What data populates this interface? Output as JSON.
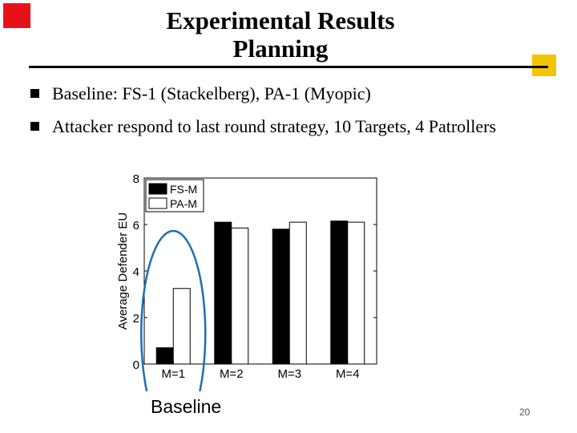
{
  "slide": {
    "title_line1": "Experimental Results",
    "title_line2": "Planning",
    "bullets": [
      "Baseline: FS-1 (Stackelberg), PA-1 (Myopic)",
      "Attacker respond to last round strategy, 10 Targets, 4 Patrollers"
    ],
    "annotation": "Baseline",
    "page_number": "20",
    "colors": {
      "red_accent": "#e8111a",
      "yellow_accent": "#f5c400",
      "circle": "#1d6fb5"
    }
  },
  "chart_data": {
    "type": "bar",
    "ylabel": "Average Defender EU",
    "xlabel": "",
    "categories": [
      "M=1",
      "M=2",
      "M=3",
      "M=4"
    ],
    "ylim": [
      0,
      8
    ],
    "yticks": [
      0,
      2,
      4,
      6,
      8
    ],
    "legend_position": "top-left",
    "grid": false,
    "series": [
      {
        "name": "FS-M",
        "fill": "#000000",
        "values": [
          0.7,
          6.1,
          5.8,
          6.15
        ]
      },
      {
        "name": "PA-M",
        "fill": "#ffffff",
        "values": [
          3.25,
          5.85,
          6.1,
          6.1
        ]
      }
    ]
  }
}
